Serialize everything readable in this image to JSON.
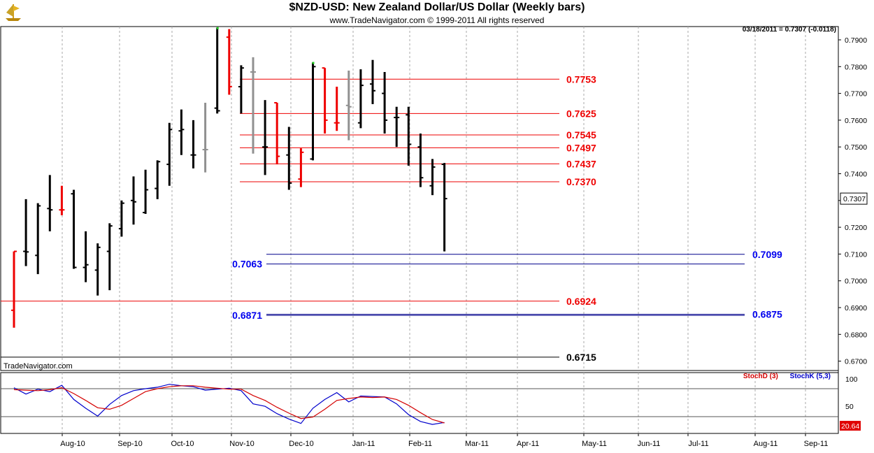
{
  "header": {
    "title": "$NZD-USD:  New Zealand Dollar/US Dollar  (Weekly bars)",
    "subtitle": "www.TradeNavigator.com © 1999-2011 All rights reserved",
    "quote": "03/18/2011 = 0.7307 (-0.0118)",
    "brand": "TradeNavigator.com",
    "last_price_label": "0.7307"
  },
  "stoch": {
    "d_label": "StochD (3)",
    "k_label": "StochK (5,3)",
    "value_label": "20.64",
    "axis_labels": [
      "100",
      "50"
    ]
  },
  "colors": {
    "up_bar": "#000000",
    "down_bar": "#ee0000",
    "neutral_bar": "#909090",
    "resistance": "#ee0000",
    "support": "#00008b",
    "support_label": "#0000ee",
    "stoch_d": "#d40000",
    "stoch_k": "#0000cc"
  },
  "chart_data": {
    "type": "ohlc",
    "title": "$NZD-USD:  New Zealand Dollar/US Dollar  (Weekly bars)",
    "ylim": [
      0.667,
      0.795
    ],
    "y_ticks": [
      "0.7900",
      "0.7800",
      "0.7700",
      "0.7600",
      "0.7500",
      "0.7400",
      "0.7300",
      "0.7200",
      "0.7100",
      "0.7000",
      "0.6900",
      "0.6800",
      "0.6700"
    ],
    "x_month_labels": [
      "Aug-10",
      "Sep-10",
      "Oct-10",
      "Nov-10",
      "Dec-10",
      "Jan-11",
      "Feb-11",
      "Mar-11",
      "Apr-11",
      "May-11",
      "Jun-11",
      "Jul-11",
      "Aug-11",
      "Sep-11"
    ],
    "bars": [
      {
        "o": 0.689,
        "h": 0.711,
        "l": 0.6825,
        "c": 0.711,
        "color": "red"
      },
      {
        "o": 0.711,
        "h": 0.7305,
        "l": 0.7055,
        "c": 0.7108,
        "color": "black"
      },
      {
        "o": 0.7095,
        "h": 0.729,
        "l": 0.7025,
        "c": 0.728,
        "color": "black"
      },
      {
        "o": 0.727,
        "h": 0.7395,
        "l": 0.7185,
        "c": 0.7265,
        "color": "black"
      },
      {
        "o": 0.7265,
        "h": 0.7355,
        "l": 0.7245,
        "c": 0.7265,
        "color": "red"
      },
      {
        "o": 0.7325,
        "h": 0.734,
        "l": 0.7045,
        "c": 0.705,
        "color": "black"
      },
      {
        "o": 0.705,
        "h": 0.7185,
        "l": 0.6995,
        "c": 0.706,
        "color": "black"
      },
      {
        "o": 0.704,
        "h": 0.714,
        "l": 0.6945,
        "c": 0.7125,
        "color": "black"
      },
      {
        "o": 0.711,
        "h": 0.7215,
        "l": 0.6965,
        "c": 0.7205,
        "color": "black"
      },
      {
        "o": 0.7195,
        "h": 0.73,
        "l": 0.7165,
        "c": 0.729,
        "color": "black"
      },
      {
        "o": 0.73,
        "h": 0.739,
        "l": 0.721,
        "c": 0.7295,
        "color": "black"
      },
      {
        "o": 0.7255,
        "h": 0.7415,
        "l": 0.725,
        "c": 0.734,
        "color": "black"
      },
      {
        "o": 0.7345,
        "h": 0.745,
        "l": 0.7305,
        "c": 0.7445,
        "color": "black"
      },
      {
        "o": 0.7435,
        "h": 0.759,
        "l": 0.7355,
        "c": 0.7565,
        "color": "black"
      },
      {
        "o": 0.756,
        "h": 0.764,
        "l": 0.747,
        "c": 0.7565,
        "color": "black"
      },
      {
        "o": 0.747,
        "h": 0.76,
        "l": 0.742,
        "c": 0.747,
        "color": "black"
      },
      {
        "o": 0.749,
        "h": 0.7665,
        "l": 0.7405,
        "c": 0.749,
        "color": "gray"
      },
      {
        "o": 0.7645,
        "h": 0.7945,
        "l": 0.7625,
        "c": 0.7635,
        "color": "black"
      },
      {
        "o": 0.791,
        "h": 0.794,
        "l": 0.7695,
        "c": 0.7725,
        "color": "red"
      },
      {
        "o": 0.7725,
        "h": 0.7805,
        "l": 0.7625,
        "c": 0.7795,
        "color": "black"
      },
      {
        "o": 0.778,
        "h": 0.7835,
        "l": 0.7475,
        "c": 0.778,
        "color": "gray"
      },
      {
        "o": 0.75,
        "h": 0.7675,
        "l": 0.7395,
        "c": 0.75,
        "color": "black"
      },
      {
        "o": 0.7665,
        "h": 0.7665,
        "l": 0.7435,
        "c": 0.7465,
        "color": "red"
      },
      {
        "o": 0.747,
        "h": 0.7575,
        "l": 0.734,
        "c": 0.7365,
        "color": "black"
      },
      {
        "o": 0.738,
        "h": 0.7495,
        "l": 0.735,
        "c": 0.748,
        "color": "red"
      },
      {
        "o": 0.7455,
        "h": 0.7815,
        "l": 0.745,
        "c": 0.78,
        "color": "black"
      },
      {
        "o": 0.7795,
        "h": 0.7795,
        "l": 0.755,
        "c": 0.76,
        "color": "red"
      },
      {
        "o": 0.759,
        "h": 0.7725,
        "l": 0.756,
        "c": 0.759,
        "color": "red"
      },
      {
        "o": 0.7655,
        "h": 0.7785,
        "l": 0.7525,
        "c": 0.765,
        "color": "gray"
      },
      {
        "o": 0.759,
        "h": 0.779,
        "l": 0.757,
        "c": 0.773,
        "color": "black"
      },
      {
        "o": 0.7735,
        "h": 0.7825,
        "l": 0.766,
        "c": 0.771,
        "color": "black"
      },
      {
        "o": 0.77,
        "h": 0.778,
        "l": 0.755,
        "c": 0.76,
        "color": "black"
      },
      {
        "o": 0.761,
        "h": 0.765,
        "l": 0.75,
        "c": 0.761,
        "color": "black"
      },
      {
        "o": 0.762,
        "h": 0.765,
        "l": 0.743,
        "c": 0.751,
        "color": "black"
      },
      {
        "o": 0.75,
        "h": 0.755,
        "l": 0.735,
        "c": 0.7385,
        "color": "black"
      },
      {
        "o": 0.7355,
        "h": 0.7455,
        "l": 0.732,
        "c": 0.7425,
        "color": "black"
      },
      {
        "o": 0.7435,
        "h": 0.744,
        "l": 0.711,
        "c": 0.7307,
        "color": "black"
      }
    ],
    "levels": [
      {
        "value": 0.7753,
        "label": "0.7753",
        "kind": "resistance",
        "label_side": "right"
      },
      {
        "value": 0.7625,
        "label": "0.7625",
        "kind": "resistance",
        "label_side": "right"
      },
      {
        "value": 0.7545,
        "label": "0.7545",
        "kind": "resistance",
        "label_side": "right"
      },
      {
        "value": 0.7497,
        "label": "0.7497",
        "kind": "resistance",
        "label_side": "right"
      },
      {
        "value": 0.7437,
        "label": "0.7437",
        "kind": "resistance",
        "label_side": "right"
      },
      {
        "value": 0.737,
        "label": "0.7370",
        "kind": "resistance",
        "label_side": "right"
      },
      {
        "value": 0.7099,
        "label": "0.7099",
        "kind": "support",
        "label_side": "far-right"
      },
      {
        "value": 0.7063,
        "label": "0.7063",
        "kind": "support",
        "label_side": "left"
      },
      {
        "value": 0.6924,
        "label": "0.6924",
        "kind": "resistance",
        "label_side": "right"
      },
      {
        "value": 0.6875,
        "label": "0.6875",
        "kind": "support",
        "label_side": "far-right"
      },
      {
        "value": 0.6871,
        "label": "0.6871",
        "kind": "support",
        "label_side": "left"
      },
      {
        "value": 0.6715,
        "label": "0.6715",
        "kind": "black",
        "label_side": "right"
      }
    ],
    "stoch_k": [
      82,
      69,
      79,
      74,
      87,
      58,
      40,
      24,
      48,
      66,
      76,
      80,
      83,
      89,
      86,
      84,
      77,
      79,
      81,
      76,
      49,
      44,
      29,
      18,
      9,
      40,
      58,
      72,
      53,
      65,
      64,
      63,
      49,
      27,
      13,
      7,
      11
    ],
    "stoch_d": [
      78,
      77,
      76,
      78,
      82,
      70,
      56,
      41,
      38,
      46,
      60,
      74,
      80,
      84,
      86,
      86,
      83,
      81,
      79,
      79,
      66,
      56,
      42,
      30,
      19,
      22,
      38,
      56,
      60,
      63,
      62,
      63,
      58,
      46,
      31,
      17,
      10
    ]
  }
}
